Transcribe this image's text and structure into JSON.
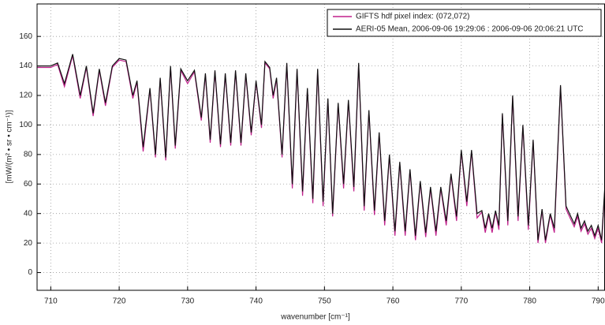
{
  "chart_data": {
    "type": "line",
    "x_label": "wavenumber [cm⁻¹]",
    "y_label": "[mW/(m² • sr • cm⁻¹)]",
    "xlim": [
      708,
      791
    ],
    "ylim": [
      -12,
      182
    ],
    "xticks": [
      710,
      720,
      730,
      740,
      750,
      760,
      770,
      780,
      790
    ],
    "yticks": [
      0,
      20,
      40,
      60,
      80,
      100,
      120,
      140,
      160
    ],
    "grid": true,
    "legend": "upper right",
    "x": [
      708,
      710,
      711,
      712,
      713.2,
      714.3,
      715.2,
      716.2,
      717.1,
      718,
      719,
      720,
      721,
      722,
      722.6,
      723.5,
      724.5,
      725.3,
      726,
      726.8,
      727.5,
      728.2,
      729,
      730,
      731,
      732,
      732.6,
      733.3,
      734,
      734.8,
      735.5,
      736.3,
      737,
      737.8,
      738.5,
      739.3,
      740,
      740.8,
      741.3,
      742,
      742.5,
      743,
      743.8,
      744.5,
      745.3,
      746,
      746.8,
      747.5,
      748.3,
      749,
      749.8,
      750.5,
      751.2,
      752,
      752.8,
      753.5,
      754.3,
      755,
      755.8,
      756.5,
      757.3,
      758,
      758.8,
      759.5,
      760.3,
      761,
      761.8,
      762.5,
      763.3,
      764,
      764.8,
      765.5,
      766.3,
      767,
      767.8,
      768.5,
      769.3,
      770,
      770.8,
      771.5,
      772.3,
      773,
      773.5,
      774,
      774.5,
      775,
      775.5,
      776,
      776.8,
      777.5,
      778.3,
      779,
      779.8,
      780.5,
      781.2,
      781.8,
      782.3,
      783,
      783.6,
      784.5,
      785.3,
      786,
      786.5,
      787,
      787.5,
      788,
      788.5,
      789,
      789.5,
      790,
      790.5,
      791
    ],
    "series": [
      {
        "name": "GIFTS hdf pixel index:  (072,072)",
        "color": "#c0208c",
        "values": [
          139,
          139,
          141,
          126,
          147,
          118,
          139,
          106,
          137,
          113,
          139,
          144,
          143,
          118,
          129,
          82,
          124,
          78,
          131,
          76,
          139,
          84,
          137,
          128,
          136,
          103,
          134,
          88,
          136,
          85,
          134,
          86,
          136,
          86,
          134,
          93,
          129,
          98,
          142,
          138,
          118,
          131,
          78,
          141,
          57,
          137,
          52,
          124,
          47,
          137,
          45,
          117,
          38,
          114,
          57,
          116,
          55,
          141,
          42,
          109,
          39,
          94,
          32,
          79,
          25,
          74,
          25,
          69,
          22,
          61,
          24,
          57,
          25,
          57,
          32,
          66,
          35,
          82,
          45,
          82,
          37,
          41,
          27,
          39,
          27,
          41,
          29,
          107,
          32,
          119,
          35,
          99,
          29,
          89,
          20,
          42,
          20,
          39,
          27,
          126,
          43,
          36,
          31,
          38,
          28,
          33,
          26,
          30,
          23,
          30,
          20,
          58
        ]
      },
      {
        "name": "AERI-05 Mean, 2006-09-06 19:29:06 : 2006-09-06 20:06:21 UTC",
        "color": "#111111",
        "values": [
          140,
          140,
          142,
          128,
          148,
          120,
          140,
          108,
          138,
          115,
          140,
          145,
          144,
          120,
          130,
          85,
          125,
          80,
          132,
          78,
          140,
          86,
          138,
          130,
          137,
          105,
          135,
          90,
          137,
          87,
          135,
          88,
          137,
          88,
          135,
          95,
          130,
          100,
          143,
          139,
          120,
          132,
          80,
          142,
          60,
          138,
          55,
          125,
          50,
          138,
          48,
          118,
          40,
          115,
          60,
          117,
          58,
          142,
          45,
          110,
          42,
          95,
          35,
          80,
          28,
          75,
          28,
          70,
          25,
          62,
          27,
          58,
          28,
          58,
          35,
          67,
          38,
          83,
          48,
          83,
          40,
          42,
          30,
          40,
          30,
          42,
          32,
          108,
          35,
          120,
          38,
          100,
          32,
          90,
          22,
          43,
          22,
          40,
          30,
          127,
          45,
          38,
          33,
          40,
          30,
          35,
          28,
          32,
          25,
          32,
          22,
          60
        ]
      }
    ]
  }
}
